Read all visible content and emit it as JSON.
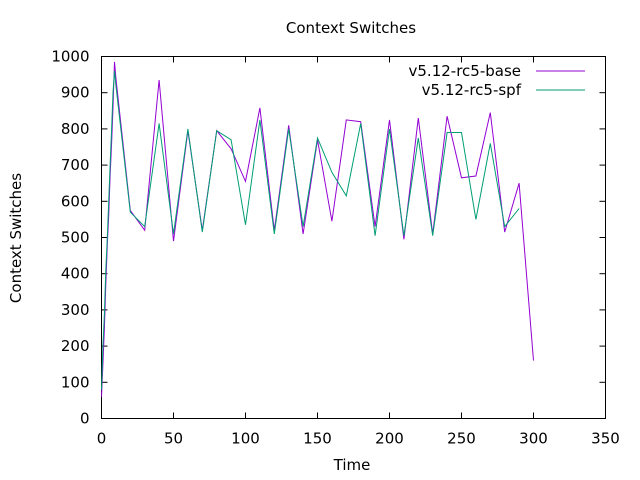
{
  "chart_data": {
    "type": "line",
    "title": "Context Switches",
    "xlabel": "Time",
    "ylabel": "Context Switches",
    "xlim": [
      0,
      350
    ],
    "ylim": [
      0,
      1000
    ],
    "xticks": [
      0,
      50,
      100,
      150,
      200,
      250,
      300,
      350
    ],
    "yticks": [
      0,
      100,
      200,
      300,
      400,
      500,
      600,
      700,
      800,
      900,
      1000
    ],
    "grid": false,
    "legend_position": "top-right",
    "series": [
      {
        "name": "v5.12-rc5-base",
        "color": "#9400d3",
        "x": [
          0,
          1,
          2,
          3,
          4,
          5,
          6,
          7,
          8,
          9,
          10,
          20,
          30,
          40,
          50,
          60,
          70,
          80,
          90,
          100,
          110,
          120,
          130,
          140,
          150,
          160,
          170,
          180,
          190,
          200,
          210,
          220,
          230,
          240,
          250,
          260,
          270,
          280,
          290,
          300
        ],
        "y": [
          60,
          150,
          250,
          370,
          480,
          560,
          670,
          760,
          860,
          985,
          940,
          575,
          520,
          935,
          490,
          795,
          520,
          795,
          745,
          655,
          858,
          520,
          810,
          510,
          770,
          545,
          825,
          820,
          530,
          825,
          495,
          830,
          510,
          835,
          665,
          670,
          845,
          515,
          650,
          160
        ]
      },
      {
        "name": "v5.12-rc5-spf",
        "color": "#009e73",
        "x": [
          0,
          1,
          2,
          3,
          4,
          5,
          6,
          7,
          8,
          9,
          10,
          20,
          30,
          40,
          50,
          60,
          70,
          80,
          90,
          100,
          110,
          120,
          130,
          140,
          150,
          160,
          170,
          180,
          190,
          200,
          210,
          220,
          230,
          240,
          250,
          260,
          270,
          280,
          290
        ],
        "y": [
          80,
          200,
          290,
          410,
          500,
          600,
          700,
          800,
          900,
          960,
          920,
          570,
          530,
          815,
          510,
          800,
          515,
          795,
          770,
          535,
          825,
          510,
          800,
          530,
          775,
          680,
          615,
          815,
          505,
          800,
          505,
          775,
          505,
          790,
          790,
          550,
          760,
          530,
          580
        ]
      }
    ]
  }
}
